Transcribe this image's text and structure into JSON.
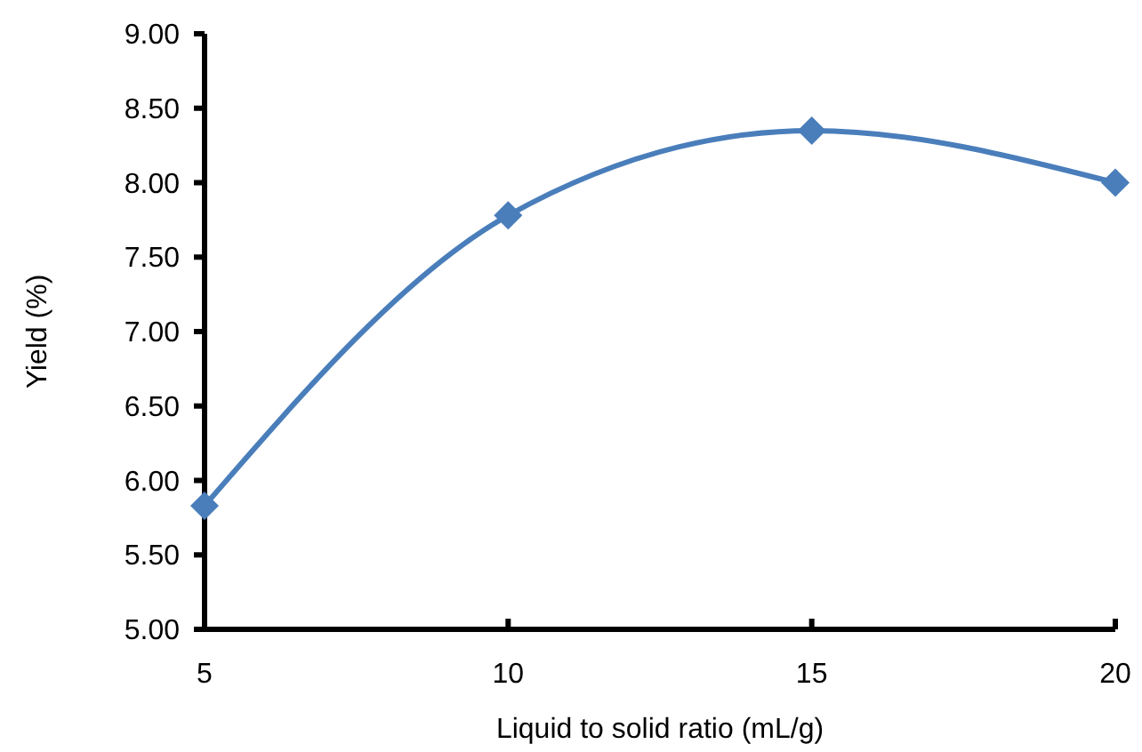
{
  "chart_data": {
    "type": "line",
    "xlabel": "Liquid to solid ratio (mL/g)",
    "ylabel": "Yield (%)",
    "x": [
      5,
      10,
      15,
      20
    ],
    "series": [
      {
        "color": "#4a7ebb",
        "values": [
          5.83,
          7.78,
          8.35,
          8.0
        ]
      }
    ],
    "xlim": [
      5,
      20
    ],
    "xticks": [
      5,
      10,
      15,
      20
    ],
    "ylim": [
      5,
      9
    ],
    "yticks": [
      {
        "value": 5,
        "label": "5.00"
      },
      {
        "value": 5.5,
        "label": "5.50"
      },
      {
        "value": 6,
        "label": "6.00"
      },
      {
        "value": 6.5,
        "label": "6.50"
      },
      {
        "value": 7,
        "label": "7.00"
      },
      {
        "value": 7.5,
        "label": "7.50"
      },
      {
        "value": 8,
        "label": "8.00"
      },
      {
        "value": 8.5,
        "label": "8.50"
      },
      {
        "value": 9,
        "label": "9.00"
      }
    ],
    "marker": "diamond",
    "line_style": "solid"
  }
}
